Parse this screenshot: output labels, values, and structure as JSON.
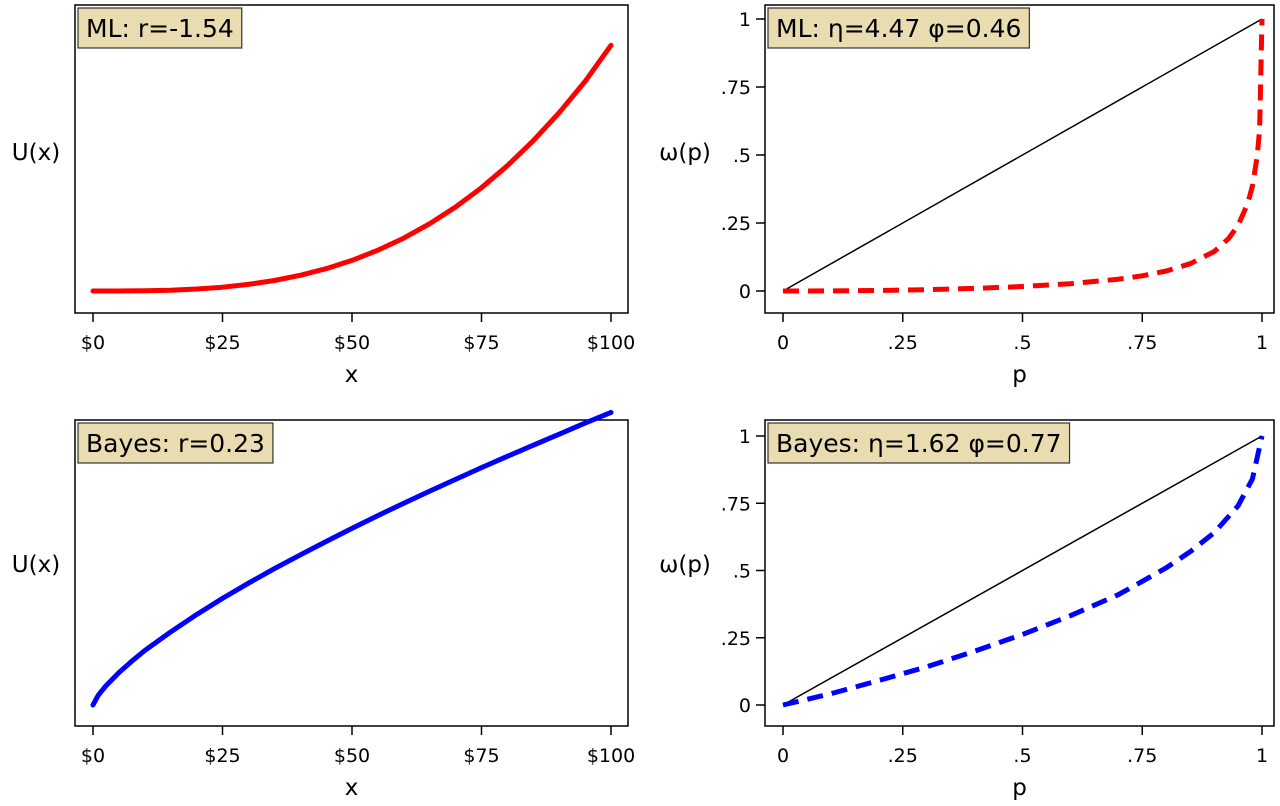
{
  "chart_data": [
    {
      "type": "line",
      "title": "ML: r=-1.54",
      "xlabel": "x",
      "ylabel": "U(x)",
      "x_ticks": [
        0,
        25,
        50,
        75,
        100
      ],
      "x_tick_labels": [
        "$0",
        "$25",
        "$50",
        "$75",
        "$100"
      ],
      "xlim": [
        0,
        100
      ],
      "ylim": [
        0,
        1
      ],
      "y_ticks_shown": false,
      "grid": false,
      "series": [
        {
          "style": "solid",
          "color": "#ff0000",
          "x": [
            0,
            5,
            10,
            15,
            20,
            25,
            30,
            35,
            40,
            45,
            50,
            55,
            60,
            65,
            70,
            75,
            80,
            85,
            90,
            95,
            100
          ],
          "y": [
            0,
            0.0001,
            0.0009,
            0.0031,
            0.0073,
            0.0141,
            0.0243,
            0.0385,
            0.0574,
            0.0818,
            0.1122,
            0.1494,
            0.1939,
            0.2465,
            0.3078,
            0.3785,
            0.4591,
            0.5504,
            0.653,
            0.7676,
            0.9
          ]
        }
      ]
    },
    {
      "type": "line",
      "title": "ML: η=4.47 φ=0.46",
      "xlabel": "p",
      "ylabel": "ω(p)",
      "x_ticks": [
        0,
        0.25,
        0.5,
        0.75,
        1
      ],
      "x_tick_labels": [
        "0",
        ".25",
        ".5",
        ".75",
        "1"
      ],
      "y_ticks": [
        0,
        0.25,
        0.5,
        0.75,
        1
      ],
      "y_tick_labels": [
        "0",
        ".25",
        ".5",
        ".75",
        "1"
      ],
      "xlim": [
        0,
        1
      ],
      "ylim": [
        0,
        1
      ],
      "grid": false,
      "series": [
        {
          "style": "solid",
          "color": "#000000",
          "x": [
            0,
            1
          ],
          "y": [
            0,
            1
          ]
        },
        {
          "style": "dashed",
          "color": "#ff0000",
          "x": [
            0,
            0.1,
            0.2,
            0.3,
            0.4,
            0.5,
            0.6,
            0.7,
            0.75,
            0.8,
            0.85,
            0.9,
            0.93,
            0.95,
            0.97,
            0.98,
            0.99,
            0.995,
            1
          ],
          "y": [
            0,
            0.0002,
            0.0017,
            0.0047,
            0.0094,
            0.0165,
            0.0269,
            0.0432,
            0.0557,
            0.0735,
            0.1002,
            0.1449,
            0.1927,
            0.2403,
            0.3205,
            0.3853,
            0.4955,
            0.5928,
            1
          ]
        }
      ]
    },
    {
      "type": "line",
      "title": "Bayes: r=0.23",
      "xlabel": "x",
      "ylabel": "U(x)",
      "x_ticks": [
        0,
        25,
        50,
        75,
        100
      ],
      "x_tick_labels": [
        "$0",
        "$25",
        "$50",
        "$75",
        "$100"
      ],
      "xlim": [
        0,
        100
      ],
      "ylim": [
        0,
        1
      ],
      "y_ticks_shown": false,
      "grid": false,
      "series": [
        {
          "style": "solid",
          "color": "#0000ff",
          "x": [
            0,
            1,
            2.5,
            5,
            7.5,
            10,
            15,
            20,
            25,
            30,
            35,
            40,
            45,
            50,
            55,
            60,
            65,
            70,
            75,
            80,
            85,
            90,
            95,
            100
          ],
          "y": [
            0,
            0.028,
            0.056,
            0.094,
            0.127,
            0.158,
            0.212,
            0.262,
            0.309,
            0.353,
            0.395,
            0.435,
            0.474,
            0.512,
            0.549,
            0.585,
            0.62,
            0.654,
            0.688,
            0.721,
            0.753,
            0.785,
            0.817,
            0.848
          ]
        }
      ]
    },
    {
      "type": "line",
      "title": "Bayes: η=1.62 φ=0.77",
      "xlabel": "p",
      "ylabel": "ω(p)",
      "x_ticks": [
        0,
        0.25,
        0.5,
        0.75,
        1
      ],
      "x_tick_labels": [
        "0",
        ".25",
        ".5",
        ".75",
        "1"
      ],
      "y_ticks": [
        0,
        0.25,
        0.5,
        0.75,
        1
      ],
      "y_tick_labels": [
        "0",
        ".25",
        ".5",
        ".75",
        "1"
      ],
      "xlim": [
        0,
        1
      ],
      "ylim": [
        0,
        1
      ],
      "grid": false,
      "series": [
        {
          "style": "solid",
          "color": "#000000",
          "x": [
            0,
            1
          ],
          "y": [
            0,
            1
          ]
        },
        {
          "style": "dashed",
          "color": "#0000ff",
          "x": [
            0,
            0.1,
            0.2,
            0.3,
            0.4,
            0.5,
            0.6,
            0.7,
            0.75,
            0.8,
            0.85,
            0.9,
            0.95,
            0.98,
            1
          ],
          "y": [
            0,
            0.042,
            0.091,
            0.142,
            0.2,
            0.262,
            0.332,
            0.41,
            0.46,
            0.51,
            0.57,
            0.64,
            0.74,
            0.84,
            1
          ]
        }
      ]
    }
  ],
  "style": {
    "title_box_fill": "#e8dcb0",
    "title_box_border": "#333333",
    "axis_color": "#000000"
  }
}
